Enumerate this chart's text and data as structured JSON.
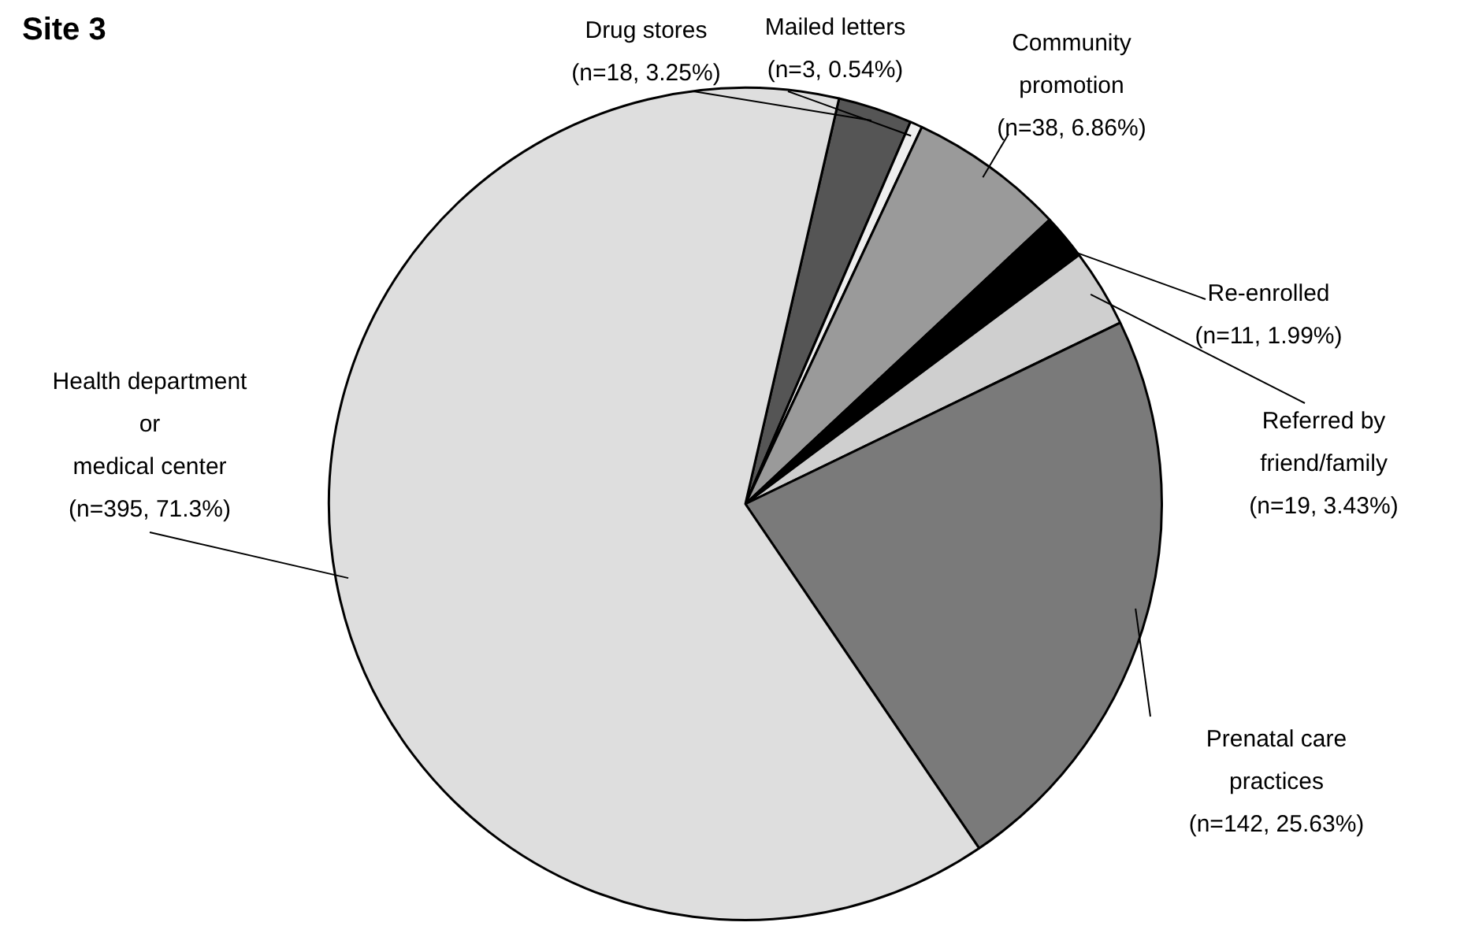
{
  "chart_data": {
    "type": "pie",
    "title": "Site 3",
    "categories": [
      "Drug stores",
      "Mailed letters",
      "Community promotion",
      "Re-enrolled",
      "Referred by friend/family",
      "Prenatal care practices",
      "Health department or medical center"
    ],
    "values": [
      18,
      3,
      38,
      11,
      19,
      142,
      395
    ],
    "value_labels": [
      "(n=18, 3.25%)",
      "(n=3, 0.54%)",
      "(n=38, 6.86%)",
      "(n=11, 1.99%)",
      "(n=19, 3.43%)",
      "(n=142, 25.63%)",
      "(n=395, 71.3%)"
    ],
    "colors": [
      "#555555",
      "#eeeeee",
      "#9a9a9a",
      "#000000",
      "#cfcfcf",
      "#7a7a7a",
      "#dedede"
    ]
  }
}
